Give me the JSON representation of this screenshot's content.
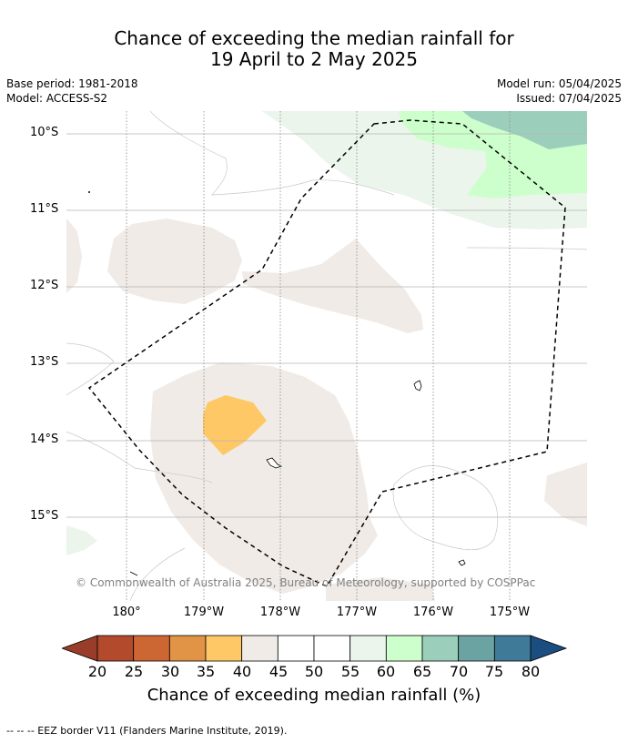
{
  "title": {
    "line1": "Chance of exceeding the median rainfall for",
    "line2": "19 April to 2 May 2025"
  },
  "meta": {
    "base_period": "Base period: 1981-2018",
    "model": "Model: ACCESS-S2",
    "model_run": "Model run: 05/04/2025",
    "issued": "Issued: 07/04/2025"
  },
  "map": {
    "lat_labels": [
      "10°S",
      "11°S",
      "12°S",
      "13°S",
      "14°S",
      "15°S"
    ],
    "lon_labels": [
      "180°",
      "179°W",
      "178°W",
      "177°W",
      "176°W",
      "175°W"
    ],
    "copyright": "© Commonwealth of Australia 2025, Bureau of Meteorology, supported by COSPPac"
  },
  "colorbar": {
    "ticks": [
      "20",
      "25",
      "30",
      "35",
      "40",
      "45",
      "50",
      "55",
      "60",
      "65",
      "70",
      "75",
      "80"
    ],
    "colors": [
      "#b24a2b",
      "#cc6633",
      "#e19445",
      "#ffc866",
      "#f0ebe6",
      "#ffffff",
      "#ffffff",
      "#ebf5eb",
      "#ccffcc",
      "#9ccfbb",
      "#6ba3a3",
      "#3f7a99"
    ],
    "low_color": "#993d2a",
    "high_color": "#1a4d80",
    "label": "Chance of exceeding median rainfall (%)"
  },
  "footnote": "--  --  -- EEZ border V11 (Flanders Marine Institute, 2019)."
}
